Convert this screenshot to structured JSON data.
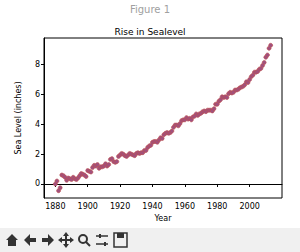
{
  "window": {
    "title": "Figure 1"
  },
  "chart_data": {
    "type": "scatter",
    "title": "Rise in Sealevel",
    "x_label": "Year",
    "y_label": "Sea Level (inches)",
    "x": [
      1880,
      1881,
      1882,
      1883,
      1884,
      1885,
      1886,
      1887,
      1888,
      1889,
      1890,
      1891,
      1892,
      1893,
      1894,
      1895,
      1896,
      1897,
      1898,
      1899,
      1900,
      1901,
      1902,
      1903,
      1904,
      1905,
      1906,
      1907,
      1908,
      1909,
      1910,
      1911,
      1912,
      1913,
      1914,
      1915,
      1916,
      1917,
      1918,
      1919,
      1920,
      1921,
      1922,
      1923,
      1924,
      1925,
      1926,
      1927,
      1928,
      1929,
      1930,
      1931,
      1932,
      1933,
      1934,
      1935,
      1936,
      1937,
      1938,
      1939,
      1940,
      1941,
      1942,
      1943,
      1944,
      1945,
      1946,
      1947,
      1948,
      1949,
      1950,
      1951,
      1952,
      1953,
      1954,
      1955,
      1956,
      1957,
      1958,
      1959,
      1960,
      1961,
      1962,
      1963,
      1964,
      1965,
      1966,
      1967,
      1968,
      1969,
      1970,
      1971,
      1972,
      1973,
      1974,
      1975,
      1976,
      1977,
      1978,
      1979,
      1980,
      1981,
      1982,
      1983,
      1984,
      1985,
      1986,
      1987,
      1988,
      1989,
      1990,
      1991,
      1992,
      1993,
      1994,
      1995,
      1996,
      1997,
      1998,
      1999,
      2000,
      2001,
      2002,
      2003,
      2004,
      2005,
      2006,
      2007,
      2008,
      2009,
      2010,
      2011,
      2012,
      2013
    ],
    "values": [
      0.0,
      0.2,
      -0.45,
      -0.25,
      0.6,
      0.55,
      0.45,
      0.25,
      0.4,
      0.35,
      0.3,
      0.45,
      0.35,
      0.3,
      0.4,
      0.55,
      0.7,
      0.65,
      0.6,
      0.5,
      0.9,
      0.85,
      0.8,
      1.1,
      1.25,
      1.2,
      1.3,
      1.05,
      1.15,
      1.15,
      1.2,
      1.35,
      1.2,
      1.3,
      1.65,
      1.7,
      1.5,
      1.45,
      1.5,
      1.85,
      1.95,
      2.05,
      2.0,
      1.9,
      1.85,
      1.95,
      2.05,
      2.0,
      1.95,
      1.9,
      2.05,
      2.1,
      2.05,
      2.1,
      2.1,
      2.25,
      2.25,
      2.45,
      2.55,
      2.6,
      2.8,
      2.85,
      2.85,
      2.8,
      2.95,
      3.1,
      3.05,
      3.3,
      3.4,
      3.45,
      3.4,
      3.45,
      3.55,
      3.8,
      3.95,
      3.95,
      3.9,
      4.05,
      4.25,
      4.3,
      4.3,
      4.45,
      4.35,
      4.4,
      4.3,
      4.5,
      4.55,
      4.7,
      4.6,
      4.7,
      4.75,
      4.85,
      4.9,
      4.85,
      4.95,
      4.95,
      4.95,
      4.9,
      5.05,
      5.35,
      5.35,
      5.55,
      5.65,
      5.85,
      5.8,
      5.85,
      5.8,
      6.05,
      6.15,
      6.1,
      6.15,
      6.3,
      6.3,
      6.35,
      6.45,
      6.5,
      6.55,
      6.65,
      6.85,
      6.8,
      7.0,
      7.2,
      7.3,
      7.5,
      7.5,
      7.55,
      7.7,
      7.75,
      7.95,
      8.15,
      8.5,
      8.65,
      9.1,
      9.3
    ],
    "color": "#a0507f",
    "marker": "o",
    "xlim": [
      1873,
      2020
    ],
    "xticks": [
      1880,
      1900,
      1920,
      1940,
      1960,
      1980,
      2000
    ],
    "ylim": [
      -0.94,
      9.79
    ],
    "yticks": [
      0,
      2,
      4,
      6,
      8
    ],
    "grid": false
  }
}
